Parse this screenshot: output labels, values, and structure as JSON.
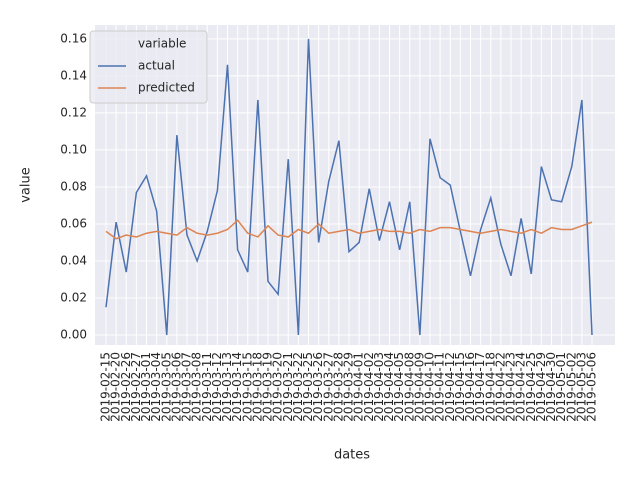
{
  "chart_data": {
    "type": "line",
    "xlabel": "dates",
    "ylabel": "value",
    "legend_title": "variable",
    "categories": [
      "2019-02-15",
      "2019-02-20",
      "2019-02-26",
      "2019-02-27",
      "2019-03-01",
      "2019-03-04",
      "2019-03-05",
      "2019-03-06",
      "2019-03-07",
      "2019-03-08",
      "2019-03-11",
      "2019-03-12",
      "2019-03-13",
      "2019-03-14",
      "2019-03-15",
      "2019-03-18",
      "2019-03-19",
      "2019-03-20",
      "2019-03-21",
      "2019-03-22",
      "2019-03-25",
      "2019-03-26",
      "2019-03-27",
      "2019-03-28",
      "2019-03-29",
      "2019-04-01",
      "2019-04-02",
      "2019-04-03",
      "2019-04-04",
      "2019-04-05",
      "2019-04-08",
      "2019-04-09",
      "2019-04-10",
      "2019-04-11",
      "2019-04-12",
      "2019-04-15",
      "2019-04-16",
      "2019-04-17",
      "2019-04-18",
      "2019-04-22",
      "2019-04-23",
      "2019-04-24",
      "2019-04-25",
      "2019-04-29",
      "2019-04-30",
      "2019-05-01",
      "2019-05-02",
      "2019-05-03",
      "2019-05-06"
    ],
    "series": [
      {
        "name": "actual",
        "color": "#4c72b0",
        "values": [
          0.015,
          0.061,
          0.034,
          0.077,
          0.086,
          0.067,
          0.0,
          0.108,
          0.054,
          0.04,
          0.056,
          0.078,
          0.146,
          0.046,
          0.034,
          0.127,
          0.029,
          0.022,
          0.095,
          0.0,
          0.16,
          0.05,
          0.083,
          0.105,
          0.045,
          0.05,
          0.079,
          0.051,
          0.072,
          0.046,
          0.072,
          0.0,
          0.106,
          0.085,
          0.081,
          0.056,
          0.032,
          0.057,
          0.074,
          0.049,
          0.032,
          0.063,
          0.033,
          0.091,
          0.073,
          0.072,
          0.091,
          0.127,
          0.0
        ]
      },
      {
        "name": "predicted",
        "color": "#dd8452",
        "values": [
          0.056,
          0.052,
          0.054,
          0.053,
          0.055,
          0.056,
          0.055,
          0.054,
          0.058,
          0.055,
          0.054,
          0.055,
          0.057,
          0.062,
          0.055,
          0.053,
          0.059,
          0.054,
          0.053,
          0.057,
          0.055,
          0.06,
          0.055,
          0.056,
          0.057,
          0.055,
          0.056,
          0.057,
          0.056,
          0.056,
          0.055,
          0.057,
          0.056,
          0.058,
          0.058,
          0.057,
          0.056,
          0.055,
          0.056,
          0.057,
          0.056,
          0.055,
          0.057,
          0.055,
          0.058,
          0.057,
          0.057,
          0.059,
          0.061
        ]
      }
    ],
    "ylim": [
      -0.0054,
      0.1675
    ],
    "yticks": [
      {
        "value": 0,
        "label": "0.00"
      },
      {
        "value": 0.02,
        "label": "0.02"
      },
      {
        "value": 0.04,
        "label": "0.04"
      },
      {
        "value": 0.06,
        "label": "0.06"
      },
      {
        "value": 0.08,
        "label": "0.08"
      },
      {
        "value": 0.1,
        "label": "0.10"
      },
      {
        "value": 0.12,
        "label": "0.12"
      },
      {
        "value": 0.14,
        "label": "0.14"
      },
      {
        "value": 0.16,
        "label": "0.16"
      }
    ],
    "grid": true,
    "legend": "upper left"
  }
}
